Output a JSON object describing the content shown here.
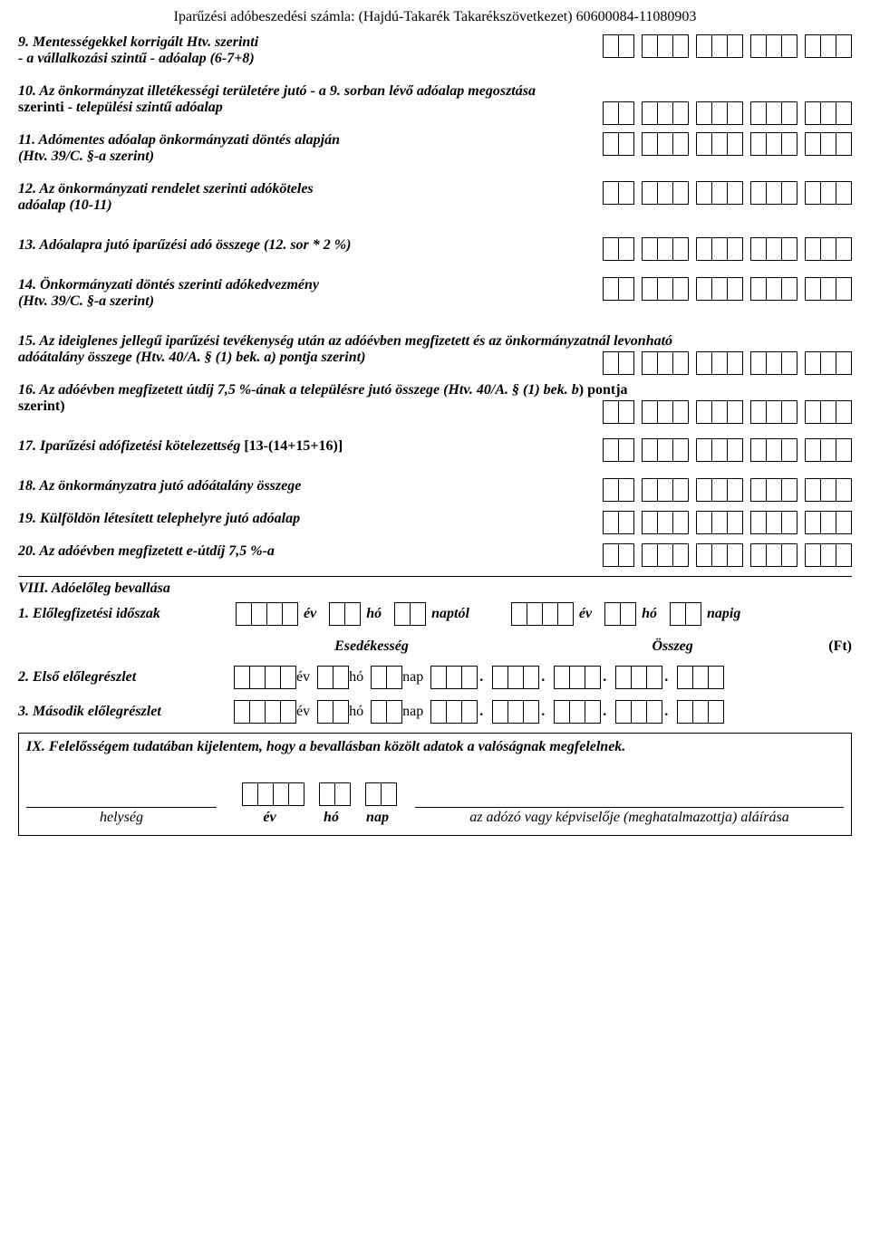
{
  "header": "Iparűzési adóbeszedési számla: (Hajdú-Takarék Takarékszövetkezet) 60600084-11080903",
  "items": {
    "i9a": "9. Mentességekkel korrigált Htv. szerinti",
    "i9b": "- a vállalkozási szintű - adóalap (6-7+8)",
    "i10a": "10. Az önkormányzat illetékességi területére jutó - a 9. sorban lévő adóalap megosztása",
    "i10b": "szerinti - ",
    "i10c": "települési szintű adóalap",
    "i11a": "11. Adómentes adóalap önkormányzati döntés alapján",
    "i11b": "(Htv. 39/C. §-a szerint)",
    "i12a": "12. Az önkormányzati rendelet szerinti adóköteles",
    "i12b": "adóalap (10-11)",
    "i13": "13. Adóalapra jutó iparűzési adó összege (12. sor *  2 %)",
    "i14a": "14. Önkormányzati döntés szerinti adókedvezmény",
    "i14b": "(Htv. 39/C. §-a szerint)",
    "i15a": " 15. Az ideiglenes jellegű iparűzési tevékenység után az adóévben megfizetett és az önkormányzatnál levonható",
    "i15b": "adóátalány összege (Htv. 40/A. § (1) bek. a) pontja szerint)",
    "i16a": "16. Az adóévben megfizetett útdíj 7,5 %-ának a településre jutó összege (Htv. 40/A. § (1) bek. b",
    "i16b": ") pontja",
    "i16c": "szerint)",
    "i17a": "17. Iparűzési adófizetési kötelezettség ",
    "i17b": "[13-(14+15+16)]",
    "i18": "18. Az önkormányzatra jutó adóátalány összege",
    "i19": "19. Külföldön létesített telephelyre jutó adóalap",
    "i20": " 20. Az adóévben megfizetett e-útdíj 7,5 %-a"
  },
  "sectionVIII": {
    "title": "VIII. Adóelőleg bevallása",
    "row1_label": " 1. Előlegfizetési időszak",
    "ev": "év",
    "ho": "hó",
    "naptol": "naptól",
    "napig": "napig",
    "esedekesseg": "Esedékesség",
    "osszeg": "Összeg",
    "ft": "(Ft)",
    "row2_label": " 2. Első előlegrészlet",
    "nap": "nap",
    "row3_label": " 3. Második előlegrészlet"
  },
  "sectionIX": {
    "text": " IX. Felelősségem tudatában kijelentem, hogy a bevallásban közölt adatok a valóságnak megfelelnek.",
    "helyseg": "helység",
    "ev": "év",
    "ho": "hó",
    "nap": "nap",
    "sig": "az adózó vagy képviselője (meghatalmazottja) aláírása"
  }
}
